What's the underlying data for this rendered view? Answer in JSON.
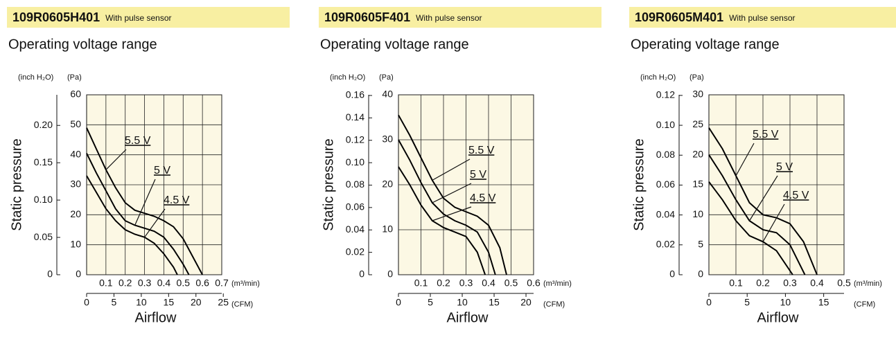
{
  "chart_data": [
    {
      "type": "line",
      "model": "109R0605H401",
      "model_note": "With pulse sensor",
      "title": "Operating voltage range",
      "ylabel": "Static pressure",
      "xlabel": "Airflow",
      "y_unit": "(Pa)",
      "y2_unit": "(inch H₂O)",
      "x_unit": "(m³/min)",
      "x2_unit": "(CFM)",
      "xlim": [
        0,
        0.7
      ],
      "xticks": [
        0.1,
        0.2,
        0.3,
        0.4,
        0.5,
        0.6,
        0.7
      ],
      "x2lim": [
        0,
        24.72
      ],
      "x2ticks": [
        0,
        5,
        10,
        15,
        20,
        25
      ],
      "ylim": [
        0,
        60
      ],
      "yticks": [
        0,
        10,
        20,
        30,
        40,
        50,
        60
      ],
      "y2lim": [
        0,
        0.241
      ],
      "y2ticks": [
        0,
        0.05,
        {
          "value": 0.1,
          "label": "0.10"
        },
        0.15,
        {
          "value": 0.2,
          "label": "0.20"
        }
      ],
      "grid": true,
      "series": [
        {
          "name": "5.5 V",
          "color": "#000000",
          "x": [
            0,
            0.05,
            0.1,
            0.15,
            0.2,
            0.25,
            0.3,
            0.35,
            0.4,
            0.45,
            0.5,
            0.55,
            0.6
          ],
          "values": [
            49,
            42,
            35,
            29,
            24,
            21.5,
            20.5,
            19.5,
            18,
            16,
            12,
            6,
            0
          ]
        },
        {
          "name": "5 V",
          "color": "#000000",
          "x": [
            0,
            0.05,
            0.1,
            0.15,
            0.2,
            0.25,
            0.3,
            0.35,
            0.4,
            0.45,
            0.5,
            0.53
          ],
          "values": [
            40.5,
            34,
            28,
            22,
            18,
            16.5,
            15.5,
            14.5,
            12.5,
            8.5,
            3.5,
            0
          ]
        },
        {
          "name": "4.5 V",
          "color": "#000000",
          "x": [
            0,
            0.05,
            0.1,
            0.15,
            0.2,
            0.25,
            0.3,
            0.35,
            0.4,
            0.45,
            0.47
          ],
          "values": [
            33,
            27.5,
            22,
            18,
            15,
            13.5,
            12.5,
            10.5,
            7,
            2.5,
            0
          ]
        }
      ]
    },
    {
      "type": "line",
      "model": "109R0605F401",
      "model_note": "With pulse sensor",
      "title": "Operating voltage range",
      "ylabel": "Static pressure",
      "xlabel": "Airflow",
      "y_unit": "(Pa)",
      "y2_unit": "(inch H₂O)",
      "x_unit": "(m³/min)",
      "x2_unit": "(CFM)",
      "xlim": [
        0,
        0.6
      ],
      "xticks": [
        0.1,
        0.2,
        0.3,
        0.4,
        0.5,
        0.6
      ],
      "x2lim": [
        0,
        21.19
      ],
      "x2ticks": [
        0,
        5,
        10,
        15,
        20
      ],
      "ylim": [
        0,
        40
      ],
      "yticks": [
        0,
        10,
        20,
        30,
        40
      ],
      "y2lim": [
        0,
        0.1606
      ],
      "y2ticks": [
        0,
        0.02,
        0.04,
        0.06,
        0.08,
        {
          "value": 0.1,
          "label": "0.10"
        },
        0.12,
        0.14,
        0.16
      ],
      "grid": true,
      "series": [
        {
          "name": "5.5 V",
          "color": "#000000",
          "x": [
            0,
            0.05,
            0.1,
            0.15,
            0.2,
            0.25,
            0.3,
            0.35,
            0.4,
            0.45,
            0.48
          ],
          "values": [
            35.5,
            31,
            26,
            21,
            17,
            15,
            14,
            13,
            11,
            6,
            0
          ]
        },
        {
          "name": "5 V",
          "color": "#000000",
          "x": [
            0,
            0.05,
            0.1,
            0.15,
            0.2,
            0.25,
            0.3,
            0.35,
            0.4,
            0.43
          ],
          "values": [
            30,
            25.5,
            20.5,
            16,
            13.5,
            12,
            11,
            9.5,
            5,
            0
          ]
        },
        {
          "name": "4.5 V",
          "color": "#000000",
          "x": [
            0,
            0.05,
            0.1,
            0.15,
            0.2,
            0.25,
            0.3,
            0.35,
            0.385
          ],
          "values": [
            24,
            20,
            15.5,
            12,
            10.5,
            9.5,
            8.5,
            5,
            0
          ]
        }
      ]
    },
    {
      "type": "line",
      "model": "109R0605M401",
      "model_note": "With pulse sensor",
      "title": "Operating voltage range",
      "ylabel": "Static pressure",
      "xlabel": "Airflow",
      "y_unit": "(Pa)",
      "y2_unit": "(inch H₂O)",
      "x_unit": "(m³/min)",
      "x2_unit": "(CFM)",
      "xlim": [
        0,
        0.5
      ],
      "xticks": [
        0.1,
        0.2,
        0.3,
        0.4,
        0.5
      ],
      "x2lim": [
        0,
        17.66
      ],
      "x2ticks": [
        0,
        5,
        10,
        15
      ],
      "ylim": [
        0,
        30
      ],
      "yticks": [
        0,
        5,
        10,
        15,
        20,
        25,
        30
      ],
      "y2lim": [
        0,
        0.1204
      ],
      "y2ticks": [
        0,
        0.02,
        0.04,
        0.06,
        0.08,
        {
          "value": 0.1,
          "label": "0.10"
        },
        0.12
      ],
      "grid": true,
      "series": [
        {
          "name": "5.5 V",
          "color": "#000000",
          "x": [
            0,
            0.05,
            0.1,
            0.15,
            0.2,
            0.25,
            0.3,
            0.35,
            0.4
          ],
          "values": [
            24.5,
            21,
            16.5,
            12,
            10,
            9.5,
            8.5,
            5.5,
            0
          ]
        },
        {
          "name": "5 V",
          "color": "#000000",
          "x": [
            0,
            0.05,
            0.1,
            0.15,
            0.2,
            0.25,
            0.3,
            0.355
          ],
          "values": [
            20,
            16.5,
            12.5,
            9,
            7.5,
            7,
            5,
            0
          ]
        },
        {
          "name": "4.5 V",
          "color": "#000000",
          "x": [
            0,
            0.05,
            0.1,
            0.15,
            0.2,
            0.25,
            0.31
          ],
          "values": [
            15.5,
            12.5,
            9,
            6.5,
            5.5,
            4,
            0
          ]
        }
      ]
    }
  ]
}
